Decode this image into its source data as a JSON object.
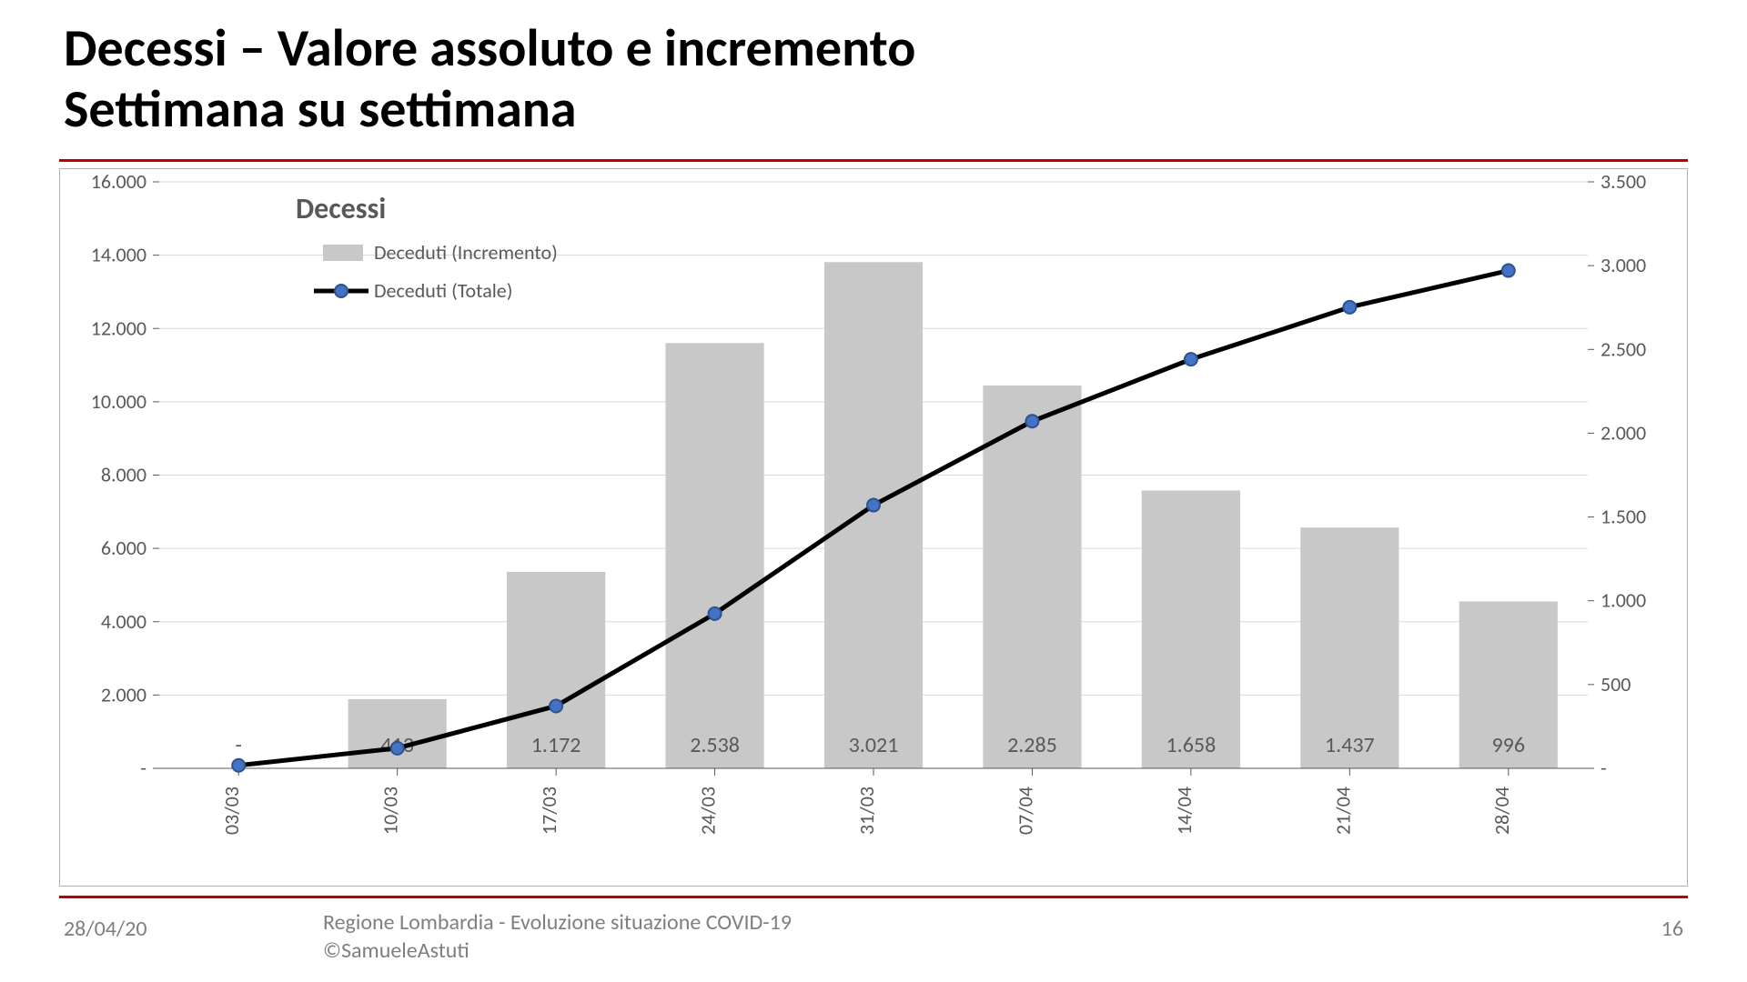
{
  "title_line1": "Decessi – Valore assoluto e incremento",
  "title_line2": "Settimana su settimana",
  "rule_color": "#c00000",
  "footer": {
    "date": "28/04/20",
    "source_line1": "Regione Lombardia - Evoluzione situazione COVID-19",
    "source_line2": "©SamueleAstuti",
    "page": "16"
  },
  "chart": {
    "type": "bar+line dual-axis",
    "background_color": "#ffffff",
    "border_color": "#b0b0b0",
    "gridline_color": "#d9d9d9",
    "font_family": "Calibri, Arial, sans-serif",
    "axis_label_fontsize": 22,
    "axis_label_color": "#595959",
    "data_label_fontsize": 24,
    "data_label_color": "#595959",
    "legend": {
      "title": "Decessi",
      "title_fontsize": 32,
      "title_fontweight": "bold",
      "title_color": "#595959",
      "items": [
        {
          "type": "bar",
          "label": "Deceduti (Incremento)",
          "color": "#c8c8c8"
        },
        {
          "type": "line",
          "label": "Deceduti (Totale)",
          "line_color": "#000000",
          "marker_fill": "#4472c4",
          "marker_stroke": "#2f528f"
        }
      ],
      "label_fontsize": 22,
      "label_color": "#595959"
    },
    "x_categories": [
      "03/03",
      "10/03",
      "17/03",
      "24/03",
      "31/03",
      "07/04",
      "14/04",
      "21/04",
      "28/04"
    ],
    "left_axis": {
      "represents": "Deceduti (Totale) — line, cumulative",
      "min": 0,
      "max": 16000,
      "step": 2000,
      "tick_labels": [
        "-",
        "2.000",
        "4.000",
        "6.000",
        "8.000",
        "10.000",
        "12.000",
        "14.000",
        "16.000"
      ]
    },
    "right_axis": {
      "represents": "Deceduti (Incremento) — bars, weekly",
      "min": 0,
      "max": 3500,
      "step": 500,
      "tick_labels": [
        "-",
        "500",
        "1.000",
        "1.500",
        "2.000",
        "2.500",
        "3.000",
        "3.500"
      ]
    },
    "bars": {
      "series_name": "Deceduti (Incremento)",
      "axis": "right",
      "color": "#c8c8c8",
      "width_ratio": 0.62,
      "values_numeric": [
        0,
        413,
        1172,
        2538,
        3021,
        2285,
        1658,
        1437,
        996
      ],
      "value_labels": [
        "-",
        "413",
        "1.172",
        "2.538",
        "3.021",
        "2.285",
        "1.658",
        "1.437",
        "996"
      ]
    },
    "line": {
      "series_name": "Deceduti (Totale)",
      "axis": "left",
      "color": "#000000",
      "width": 5,
      "marker_radius": 7,
      "marker_fill": "#4472c4",
      "marker_stroke": "#2f528f",
      "marker_stroke_width": 2,
      "values_numeric": [
        80,
        550,
        1700,
        4220,
        7180,
        9470,
        11160,
        12580,
        13580
      ]
    }
  }
}
